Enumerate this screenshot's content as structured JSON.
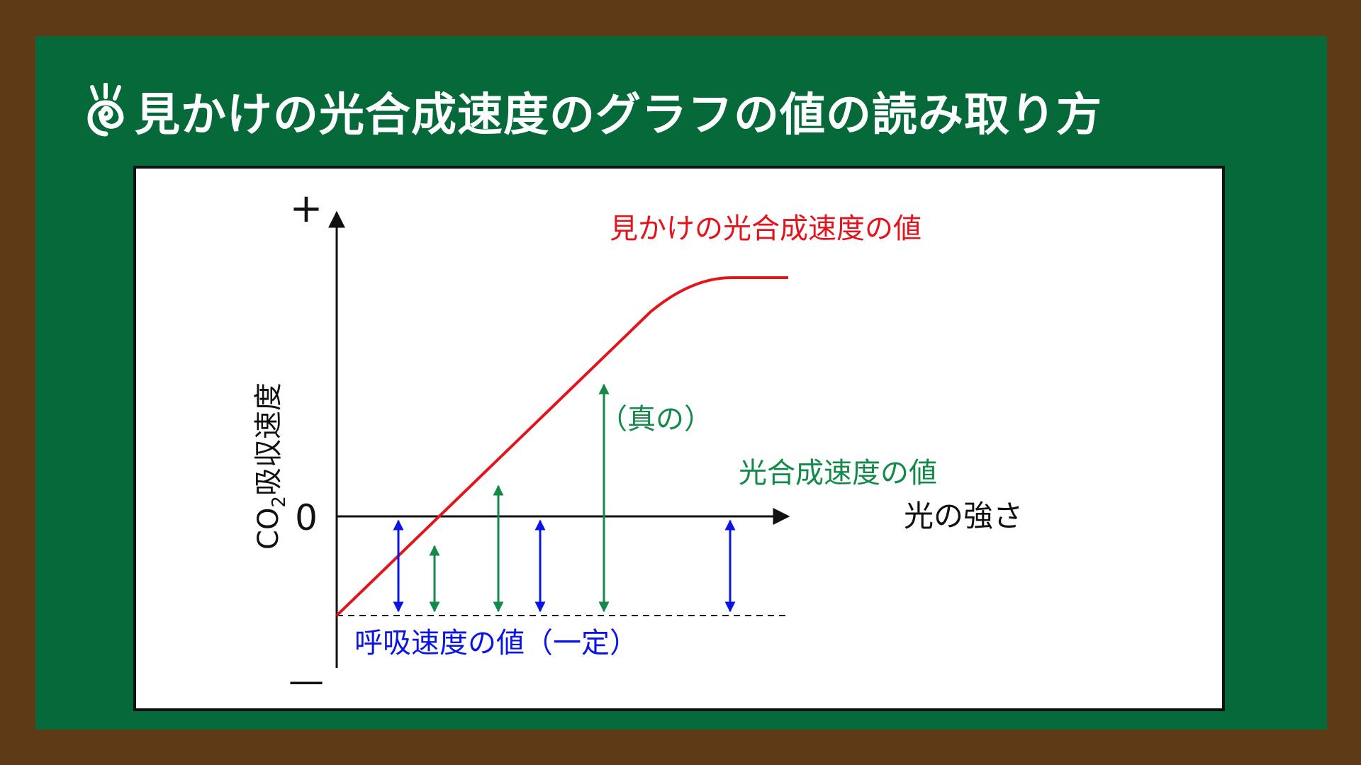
{
  "title": "見かけの光合成速度のグラフの値の読み取り方",
  "icon": "spiral-sprout-icon",
  "diagram": {
    "y_axis": {
      "label_main": "CO",
      "label_sub": "2",
      "label_rest": "吸収速度",
      "plus": "+",
      "zero": "0",
      "minus": "—"
    },
    "x_axis": {
      "label": "光の強さ"
    },
    "apparent_label": "見かけの光合成速度の値",
    "true_label_line1": "（真の）",
    "true_label_line2": "光合成速度の値",
    "respiration_label": "呼吸速度の値（一定）",
    "colors": {
      "apparent": "#e3141c",
      "true": "#138a4a",
      "respiration": "#0a14e6",
      "axis": "#111111"
    }
  }
}
